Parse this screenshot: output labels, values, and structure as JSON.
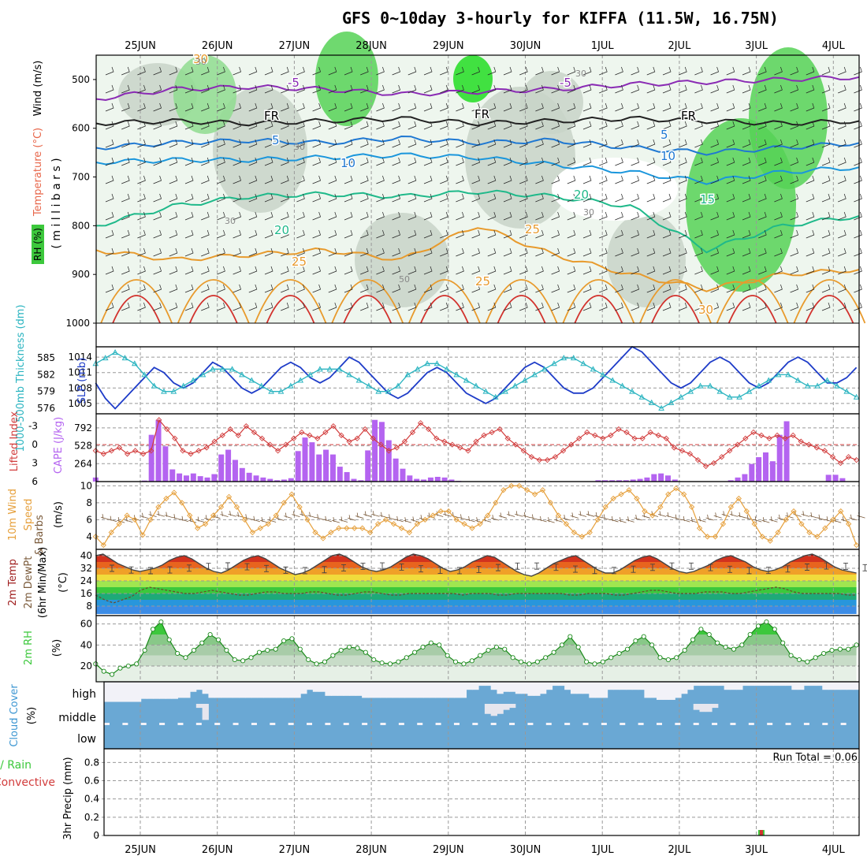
{
  "title": "GFS 0~10day 3-hourly for KIFFA (11.5W, 16.75N)",
  "dates": [
    "25JUN",
    "26JUN",
    "27JUN",
    "28JUN",
    "29JUN",
    "30JUN",
    "1JUL",
    "2JUL",
    "3JUL",
    "4JUL"
  ],
  "run_total_label": "Run Total = 0.06",
  "colors": {
    "rh": "#3cc83c",
    "temp_red": "#d2322d",
    "temp_orange": "#e89a2c",
    "temp_green": "#1fb98a",
    "temp_blue": "#1f78d2",
    "temp_purple": "#8a2bb4",
    "slp": "#1e3cc8",
    "thick": "#2ab4c0",
    "li": "#d23c3c",
    "cape": "#b464f0",
    "wind": "#e6a03c",
    "cloud": "#6ea8d8"
  },
  "chart_data": [
    {
      "type": "heatmap",
      "name_label": "pressure-cross-section",
      "ylabel_parts": [
        "RH (%)",
        "Temperature (°C)",
        "Wind (m/s)"
      ],
      "ylabel_right": "( m i l l i b a r s )",
      "yticks": [
        500,
        600,
        700,
        800,
        900,
        1000
      ],
      "ylim": [
        450,
        1000
      ],
      "contour_labels": {
        "temp": [
          "-5",
          "-5",
          "FR",
          "FR",
          "FR",
          "5",
          "5",
          "10",
          "10",
          "20",
          "20",
          "15",
          "25",
          "25",
          "25",
          "30",
          "30"
        ],
        "rh": [
          "30",
          "30",
          "30",
          "50",
          "30",
          "30"
        ]
      },
      "isotherms": [
        {
          "label": "-5",
          "color": "#8a2bb4",
          "levels": [
            540,
            520,
            515,
            520,
            530,
            525,
            520,
            510,
            505,
            500,
            495
          ]
        },
        {
          "label": "FR",
          "color": "#222222",
          "levels": [
            590,
            585,
            590,
            585,
            580,
            590,
            585,
            580,
            585,
            590,
            585
          ]
        },
        {
          "label": "5",
          "color": "#1f78d2",
          "levels": [
            640,
            630,
            625,
            630,
            620,
            630,
            625,
            640,
            650,
            640,
            630
          ]
        },
        {
          "label": "10",
          "color": "#1a96dc",
          "levels": [
            670,
            665,
            665,
            660,
            655,
            660,
            675,
            690,
            710,
            690,
            680
          ]
        },
        {
          "label": "20",
          "color": "#1fb98a",
          "levels": [
            800,
            760,
            740,
            735,
            740,
            730,
            740,
            760,
            850,
            800,
            780
          ]
        },
        {
          "label": "25",
          "color": "#e89a2c",
          "levels": [
            850,
            870,
            860,
            850,
            870,
            800,
            860,
            900,
            930,
            900,
            890
          ]
        }
      ]
    },
    {
      "type": "line",
      "name_label": "slp-thickness",
      "ylabel_left": "1000-500mb Thickness (dm)",
      "ylabel_right": "SLP (mb)",
      "yticks_thickness": [
        576,
        579,
        582,
        585
      ],
      "yticks_slp": [
        1005,
        1008,
        1011,
        1014
      ],
      "series": [
        {
          "name": "SLP (mb)",
          "values": [
            1009,
            1006,
            1004,
            1006,
            1008,
            1010,
            1012,
            1011,
            1009,
            1008,
            1009,
            1011,
            1013,
            1012,
            1010,
            1008,
            1007,
            1008,
            1010,
            1012,
            1013,
            1012,
            1010,
            1009,
            1010,
            1012,
            1014,
            1013,
            1011,
            1009,
            1007,
            1006,
            1007,
            1009,
            1011,
            1012,
            1011,
            1009,
            1007,
            1006,
            1005,
            1006,
            1008,
            1010,
            1012,
            1013,
            1012,
            1010,
            1008,
            1007,
            1007,
            1008,
            1010,
            1012,
            1014,
            1016,
            1015,
            1013,
            1011,
            1009,
            1008,
            1009,
            1011,
            1013,
            1014,
            1013,
            1011,
            1009,
            1008,
            1009,
            1011,
            1013,
            1014,
            1013,
            1011,
            1009,
            1009,
            1010,
            1012
          ]
        },
        {
          "name": "Thickness (dm)",
          "values": [
            584,
            585,
            586,
            585,
            584,
            582,
            580,
            579,
            579,
            580,
            581,
            582,
            583,
            583,
            583,
            582,
            581,
            580,
            579,
            579,
            580,
            581,
            582,
            583,
            583,
            583,
            582,
            581,
            580,
            579,
            579,
            580,
            582,
            583,
            584,
            584,
            583,
            582,
            581,
            580,
            579,
            578,
            579,
            580,
            581,
            582,
            583,
            584,
            585,
            585,
            584,
            583,
            582,
            581,
            580,
            579,
            578,
            577,
            576,
            577,
            578,
            579,
            580,
            580,
            579,
            578,
            578,
            579,
            580,
            581,
            582,
            582,
            581,
            580,
            580,
            581,
            580,
            579,
            578
          ]
        }
      ]
    },
    {
      "type": "bar",
      "name_label": "lifted-cape",
      "ylabel_left": "Lifted Index",
      "ylabel_right": "CAPE (J/kg)",
      "yticks_li": [
        "-3",
        "0",
        "3",
        "6"
      ],
      "yticks_cape": [
        264,
        528,
        792
      ],
      "li_values": [
        1.0,
        1.5,
        1.0,
        0.5,
        1.5,
        1.0,
        1.5,
        1.0,
        -4.0,
        -2.5,
        -1.0,
        1.0,
        1.5,
        1.0,
        0.5,
        -0.5,
        -1.5,
        -2.5,
        -1.5,
        -3.0,
        -2.0,
        -1.0,
        0.0,
        1.0,
        0.0,
        -1.0,
        -2.0,
        -1.5,
        -1.0,
        -2.0,
        -3.0,
        -1.5,
        -0.5,
        -1.0,
        -2.5,
        -1.0,
        0.0,
        1.0,
        0.5,
        -0.5,
        -2.0,
        -3.5,
        -2.5,
        -1.0,
        -0.5,
        0.0,
        0.5,
        1.0,
        -0.5,
        -1.5,
        -2.0,
        -2.5,
        -1.0,
        0.0,
        1.0,
        2.0,
        2.5,
        2.5,
        2.0,
        1.0,
        0.0,
        -1.0,
        -2.0,
        -1.5,
        -1.0,
        -1.5,
        -2.5,
        -2.0,
        -1.0,
        -1.0,
        -2.0,
        -1.5,
        -1.0,
        0.5,
        1.0,
        1.5,
        2.5,
        3.5,
        3.0,
        2.0,
        1.0,
        0.0,
        -1.0,
        -2.0,
        -1.5,
        -1.0,
        -1.5,
        -1.0,
        -1.5,
        -0.5,
        0.0,
        0.5,
        1.0,
        2.0,
        3.0,
        2.0,
        2.5
      ],
      "cape_values": [
        60,
        0,
        0,
        0,
        0,
        0,
        0,
        15,
        690,
        910,
        520,
        180,
        120,
        90,
        120,
        80,
        60,
        110,
        400,
        470,
        320,
        200,
        130,
        90,
        60,
        40,
        20,
        30,
        50,
        450,
        650,
        580,
        400,
        470,
        400,
        220,
        140,
        40,
        20,
        460,
        910,
        880,
        610,
        340,
        190,
        90,
        40,
        30,
        60,
        70,
        60,
        30,
        10,
        0,
        0,
        0,
        0,
        0,
        0,
        0,
        0,
        0,
        0,
        0,
        0,
        0,
        0,
        0,
        0,
        0,
        0,
        0,
        20,
        20,
        20,
        20,
        20,
        30,
        40,
        60,
        110,
        120,
        90,
        30,
        0,
        0,
        0,
        0,
        0,
        0,
        0,
        20,
        60,
        110,
        260,
        360,
        430,
        300,
        690,
        890,
        0,
        0,
        0,
        0,
        0,
        100,
        100,
        50,
        0,
        0
      ]
    },
    {
      "type": "line",
      "name_label": "10m-wind",
      "ylabel": "10m Wind Speed & Barbs (m/s)",
      "yticks": [
        4,
        6,
        8,
        10
      ],
      "ylim": [
        2.5,
        10.5
      ],
      "values": [
        4.0,
        3.0,
        4.5,
        5.5,
        6.5,
        6.0,
        4.2,
        6.0,
        7.5,
        8.5,
        9.2,
        8.0,
        6.5,
        5.0,
        5.5,
        6.5,
        7.5,
        8.7,
        7.5,
        6.0,
        4.5,
        5.0,
        5.5,
        6.5,
        8.0,
        9.0,
        7.5,
        6.0,
        4.5,
        3.8,
        4.5,
        5.0,
        5.0,
        5.0,
        5.0,
        4.5,
        5.5,
        6.0,
        5.5,
        5.0,
        4.5,
        5.5,
        6.0,
        6.5,
        7.0,
        7.0,
        6.0,
        5.5,
        5.0,
        5.5,
        6.5,
        8.0,
        9.5,
        10.0,
        10.0,
        9.5,
        9.0,
        9.5,
        8.0,
        6.5,
        5.5,
        4.5,
        4.0,
        4.5,
        6.0,
        7.5,
        8.5,
        9.0,
        9.5,
        8.5,
        7.0,
        6.5,
        7.5,
        9.0,
        9.7,
        9.0,
        7.5,
        5.0,
        4.0,
        4.0,
        5.5,
        7.5,
        8.5,
        7.0,
        5.5,
        4.0,
        3.5,
        4.5,
        6.0,
        7.0,
        5.5,
        4.5,
        4.0,
        5.0,
        6.0,
        7.0,
        5.5,
        3.0
      ]
    },
    {
      "type": "area",
      "name_label": "2m-temp",
      "ylabel": "2m Temp 2m DewPt (6hr Min/Max) (°C)",
      "yticks": [
        8,
        16,
        24,
        32,
        40
      ],
      "ylim": [
        2,
        44
      ],
      "temp": [
        40,
        41,
        38,
        35,
        33,
        31,
        30,
        31,
        32,
        34,
        37,
        39,
        40,
        38,
        35,
        32,
        30,
        29,
        31,
        34,
        37,
        39,
        40,
        38,
        35,
        32,
        30,
        28,
        29,
        31,
        34,
        37,
        40,
        41,
        39,
        36,
        33,
        31,
        30,
        31,
        33,
        36,
        39,
        41,
        40,
        38,
        35,
        32,
        30,
        31,
        33,
        36,
        38,
        40,
        39,
        36,
        33,
        30,
        28,
        27,
        29,
        32,
        35,
        37,
        39,
        40,
        37,
        34,
        31,
        29,
        29,
        31,
        34,
        37,
        39,
        40,
        38,
        35,
        32,
        30,
        29,
        30,
        32,
        34,
        37,
        39,
        40,
        38,
        36,
        33,
        31,
        30,
        31,
        33,
        36,
        38,
        40,
        41,
        39,
        36,
        33,
        31,
        30,
        29
      ],
      "dewpoint": [
        15,
        12,
        10,
        12,
        14,
        18,
        20,
        19,
        18,
        17,
        16,
        16,
        17,
        18,
        17,
        16,
        15,
        15,
        16,
        17,
        17,
        16,
        16,
        16,
        17,
        17,
        16,
        15,
        15,
        16,
        17,
        17,
        16,
        15,
        15,
        16,
        16,
        16,
        16,
        16,
        16,
        15,
        16,
        16,
        16,
        15,
        15,
        16,
        16,
        16,
        16,
        16,
        16,
        15,
        15,
        16,
        16,
        16,
        15,
        15,
        16,
        17,
        18,
        18,
        17,
        16,
        16,
        16,
        17,
        17,
        17,
        16,
        16,
        17,
        18,
        19,
        20,
        19,
        17,
        16,
        16,
        16,
        16,
        16,
        15,
        15
      ]
    },
    {
      "type": "area",
      "name_label": "2m-rh",
      "ylabel": "2m RH (%)",
      "yticks": [
        20,
        40,
        60
      ],
      "ylim": [
        5,
        68
      ],
      "values": [
        22,
        15,
        12,
        18,
        20,
        22,
        35,
        55,
        62,
        45,
        32,
        28,
        35,
        42,
        50,
        45,
        35,
        26,
        25,
        28,
        33,
        35,
        36,
        44,
        46,
        36,
        26,
        22,
        24,
        30,
        35,
        38,
        37,
        33,
        26,
        23,
        22,
        24,
        28,
        33,
        38,
        42,
        40,
        30,
        24,
        22,
        25,
        30,
        35,
        38,
        36,
        28,
        24,
        22,
        24,
        28,
        33,
        40,
        48,
        38,
        24,
        22,
        24,
        28,
        32,
        36,
        44,
        48,
        40,
        28,
        26,
        28,
        35,
        45,
        55,
        50,
        42,
        38,
        36,
        40,
        50,
        58,
        62,
        55,
        42,
        30,
        26,
        24,
        28,
        32,
        35,
        36,
        36,
        40
      ]
    },
    {
      "type": "heatmap",
      "name_label": "cloud-cover",
      "ylabel": "Cloud Cover (%)",
      "levels": [
        "high",
        "middle",
        "low"
      ],
      "high": [
        0,
        0,
        0,
        0,
        0,
        0,
        15,
        15,
        15,
        15,
        15,
        15,
        20,
        20,
        50,
        60,
        40,
        20,
        20,
        20,
        20,
        20,
        20,
        20,
        20,
        20,
        20,
        20,
        20,
        20,
        20,
        20,
        40,
        60,
        50,
        50,
        30,
        30,
        30,
        30,
        30,
        30,
        20,
        20,
        20,
        20,
        20,
        20,
        20,
        20,
        20,
        20,
        20,
        20,
        20,
        20,
        20,
        20,
        20,
        60,
        60,
        80,
        80,
        60,
        40,
        50,
        50,
        40,
        40,
        30,
        30,
        40,
        60,
        80,
        80,
        60,
        40,
        40,
        40,
        20,
        20,
        20,
        60,
        60,
        60,
        60,
        60,
        60,
        20,
        20,
        10,
        10,
        10,
        20,
        40,
        60,
        80,
        80,
        80,
        80,
        80,
        60,
        60,
        60,
        80,
        80,
        80,
        80,
        80,
        80,
        80,
        80,
        60,
        60,
        80,
        80,
        80,
        60,
        60,
        60,
        60,
        60,
        60
      ],
      "middle": [
        0,
        0,
        0,
        0,
        0,
        0,
        0,
        0,
        0,
        0,
        0,
        0,
        0,
        0,
        0,
        20,
        80,
        0,
        0,
        0,
        0,
        0,
        0,
        0,
        0,
        0,
        0,
        0,
        0,
        0,
        0,
        0,
        0,
        0,
        0,
        0,
        0,
        0,
        0,
        0,
        0,
        0,
        0,
        0,
        0,
        0,
        0,
        0,
        0,
        0,
        0,
        0,
        0,
        0,
        0,
        0,
        0,
        0,
        0,
        0,
        0,
        0,
        50,
        60,
        50,
        30,
        20,
        0,
        0,
        0,
        0,
        0,
        0,
        0,
        0,
        0,
        0,
        0,
        0,
        0,
        0,
        0,
        0,
        0,
        0,
        0,
        0,
        0,
        0,
        0,
        0,
        0,
        0,
        0,
        0,
        0,
        30,
        40,
        40,
        20,
        0,
        0,
        0,
        0,
        0,
        0,
        0,
        0,
        0,
        0,
        0,
        0,
        0,
        0,
        0,
        0,
        0,
        0,
        0,
        0,
        0,
        0,
        0,
        0,
        0,
        0,
        0,
        0
      ],
      "low": []
    },
    {
      "type": "bar",
      "name_label": "3hr-precip",
      "ylabel_parts": [
        "Total / Rain",
        "Convective"
      ],
      "ylabel": "3hr Precip (mm)",
      "yticks": [
        "0",
        "0.2",
        "0.4",
        "0.6",
        "0.8"
      ],
      "ylim": [
        0,
        0.95
      ],
      "values": [
        0,
        0,
        0,
        0,
        0,
        0,
        0,
        0,
        0,
        0,
        0,
        0,
        0,
        0,
        0,
        0,
        0,
        0,
        0,
        0,
        0,
        0,
        0,
        0,
        0,
        0,
        0,
        0,
        0,
        0,
        0,
        0,
        0,
        0,
        0,
        0,
        0,
        0,
        0,
        0,
        0,
        0,
        0,
        0,
        0,
        0,
        0,
        0,
        0,
        0,
        0,
        0,
        0,
        0,
        0,
        0,
        0,
        0,
        0,
        0,
        0,
        0,
        0,
        0,
        0,
        0,
        0,
        0,
        0,
        0,
        0,
        0,
        0,
        0,
        0,
        0,
        0,
        0,
        0,
        0,
        0,
        0,
        0,
        0,
        0,
        0,
        0,
        0,
        0,
        0,
        0,
        0.06,
        0,
        0,
        0,
        0,
        0,
        0,
        0,
        0,
        0,
        0,
        0,
        0,
        0
      ]
    }
  ]
}
